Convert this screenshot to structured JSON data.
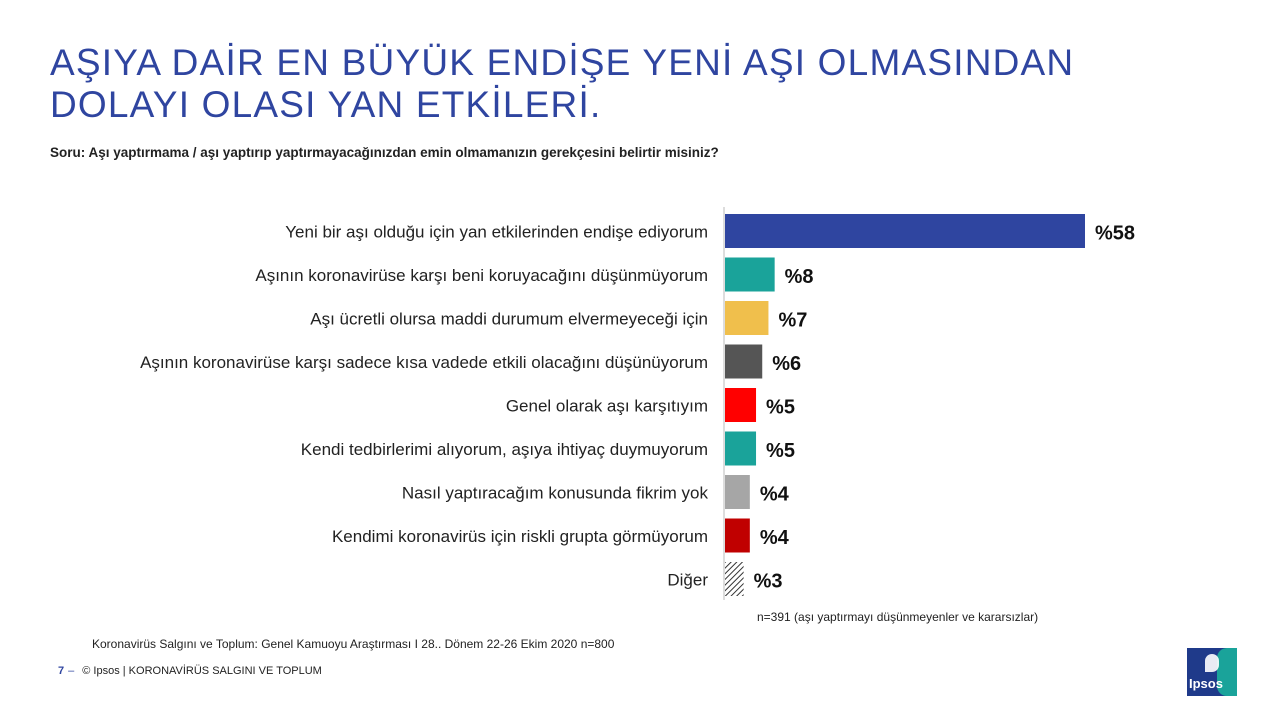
{
  "header": {
    "title_line1": "AŞIYA DAİR EN BÜYÜK ENDİŞE YENİ AŞI OLMASINDAN",
    "title_line2": "DOLAYI OLASI YAN ETKİLERİ.",
    "question": "Soru: Aşı yaptırmama / aşı yaptırıp yaptırmayacağınızdan emin olmamanızın gerekçesini belirtir misiniz?"
  },
  "chart_data": {
    "type": "bar",
    "orientation": "horizontal",
    "value_prefix": "%",
    "categories": [
      "Yeni bir aşı olduğu için yan etkilerinden endişe ediyorum",
      "Aşının koronavirüse karşı beni koruyacağını düşünmüyorum",
      "Aşı ücretli olursa maddi durumum elvermeyeceği için",
      "Aşının koronavirüse karşı sadece kısa vadede etkili olacağını düşünüyorum",
      "Genel olarak aşı karşıtıyım",
      "Kendi tedbirlerimi alıyorum, aşıya ihtiyaç duymuyorum",
      "Nasıl yaptıracağım konusunda fikrim yok",
      "Kendimi koronavirüs için riskli grupta görmüyorum",
      "Diğer"
    ],
    "values": [
      58,
      8,
      7,
      6,
      5,
      5,
      4,
      4,
      3
    ],
    "data_labels": [
      "%58",
      "%8",
      "%7",
      "%6",
      "%5",
      "%5",
      "%4",
      "%4",
      "%3"
    ],
    "colors": [
      "#2f45a0",
      "#1aa39a",
      "#f0bf4c",
      "#555555",
      "#ff0000",
      "#1aa39a",
      "#a6a6a6",
      "#c00000",
      "hatched"
    ],
    "xlim": [
      0,
      58
    ],
    "grid": false,
    "legend": "none"
  },
  "notes": {
    "sample": "n=391 (aşı yaptırmayı düşünmeyenler ve kararsızlar)",
    "source": "Koronavirüs Salgını ve Toplum: Genel Kamuoyu Araştırması I 28.. Dönem 22-26 Ekim 2020   n=800"
  },
  "footer": {
    "page_number": "7",
    "dash": "–",
    "copyright": "© Ipsos | KORONAVİRÜS SALGINI VE TOPLUM"
  },
  "logo": {
    "text": "Ipsos",
    "colors": [
      "#1f3a8a",
      "#1aa39a"
    ]
  }
}
